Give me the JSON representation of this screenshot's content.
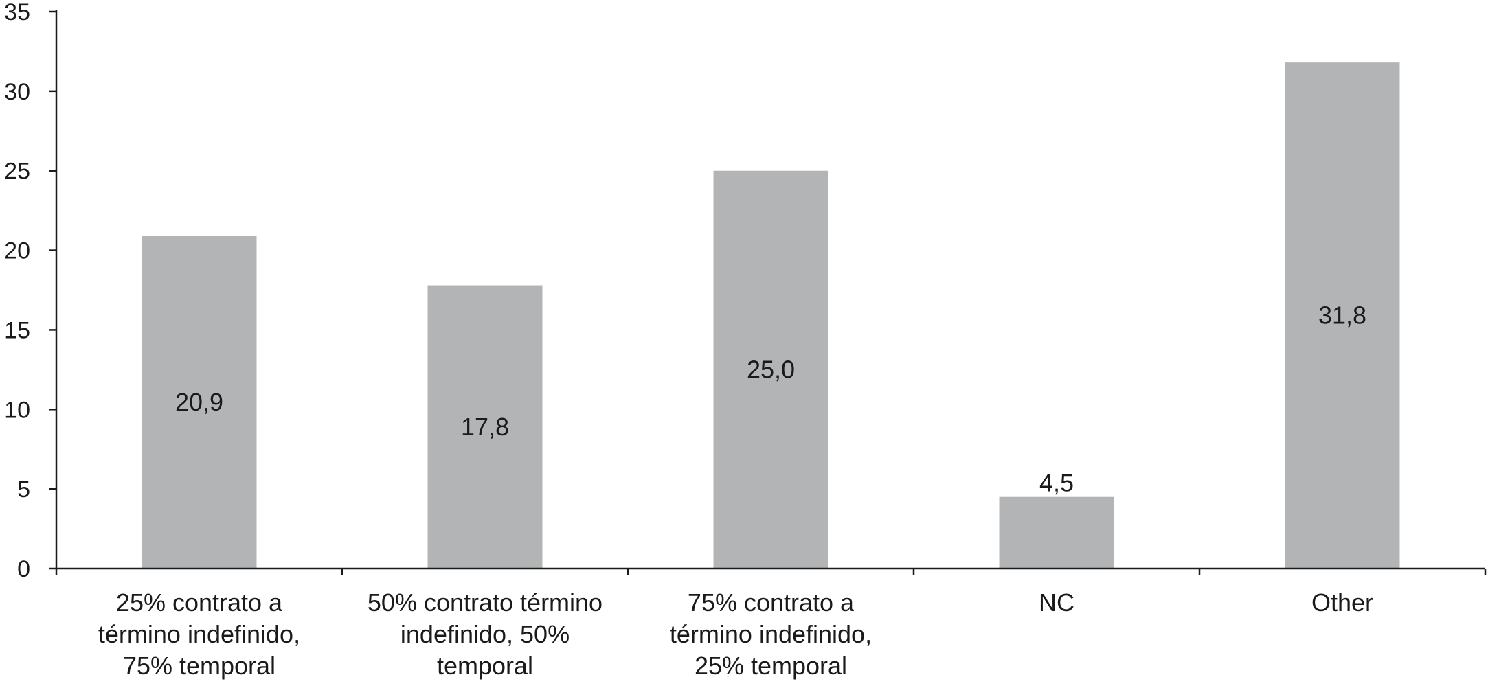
{
  "chart_data": {
    "type": "bar",
    "categories": [
      [
        "25% contrato a",
        "término indefinido,",
        "75%  temporal"
      ],
      [
        "50% contrato término",
        "indefinido, 50%",
        "temporal"
      ],
      [
        "75% contrato a",
        "término indefinido,",
        "25% temporal"
      ],
      [
        "NC"
      ],
      [
        "Other"
      ]
    ],
    "values": [
      20.9,
      17.8,
      25.0,
      4.5,
      31.8
    ],
    "value_labels": [
      "20,9",
      "17,8",
      "25,0",
      "4,5",
      "31,8"
    ],
    "label_position": [
      "inside",
      "inside",
      "inside",
      "above",
      "inside"
    ],
    "y_ticks": [
      0,
      5,
      10,
      15,
      20,
      25,
      30,
      35
    ],
    "ylim": [
      0,
      35
    ],
    "title": "",
    "xlabel": "",
    "ylabel": "",
    "grid": false,
    "legend": "none",
    "bar_color": "#b3b4b6",
    "axis_color": "#1a1a1a"
  }
}
